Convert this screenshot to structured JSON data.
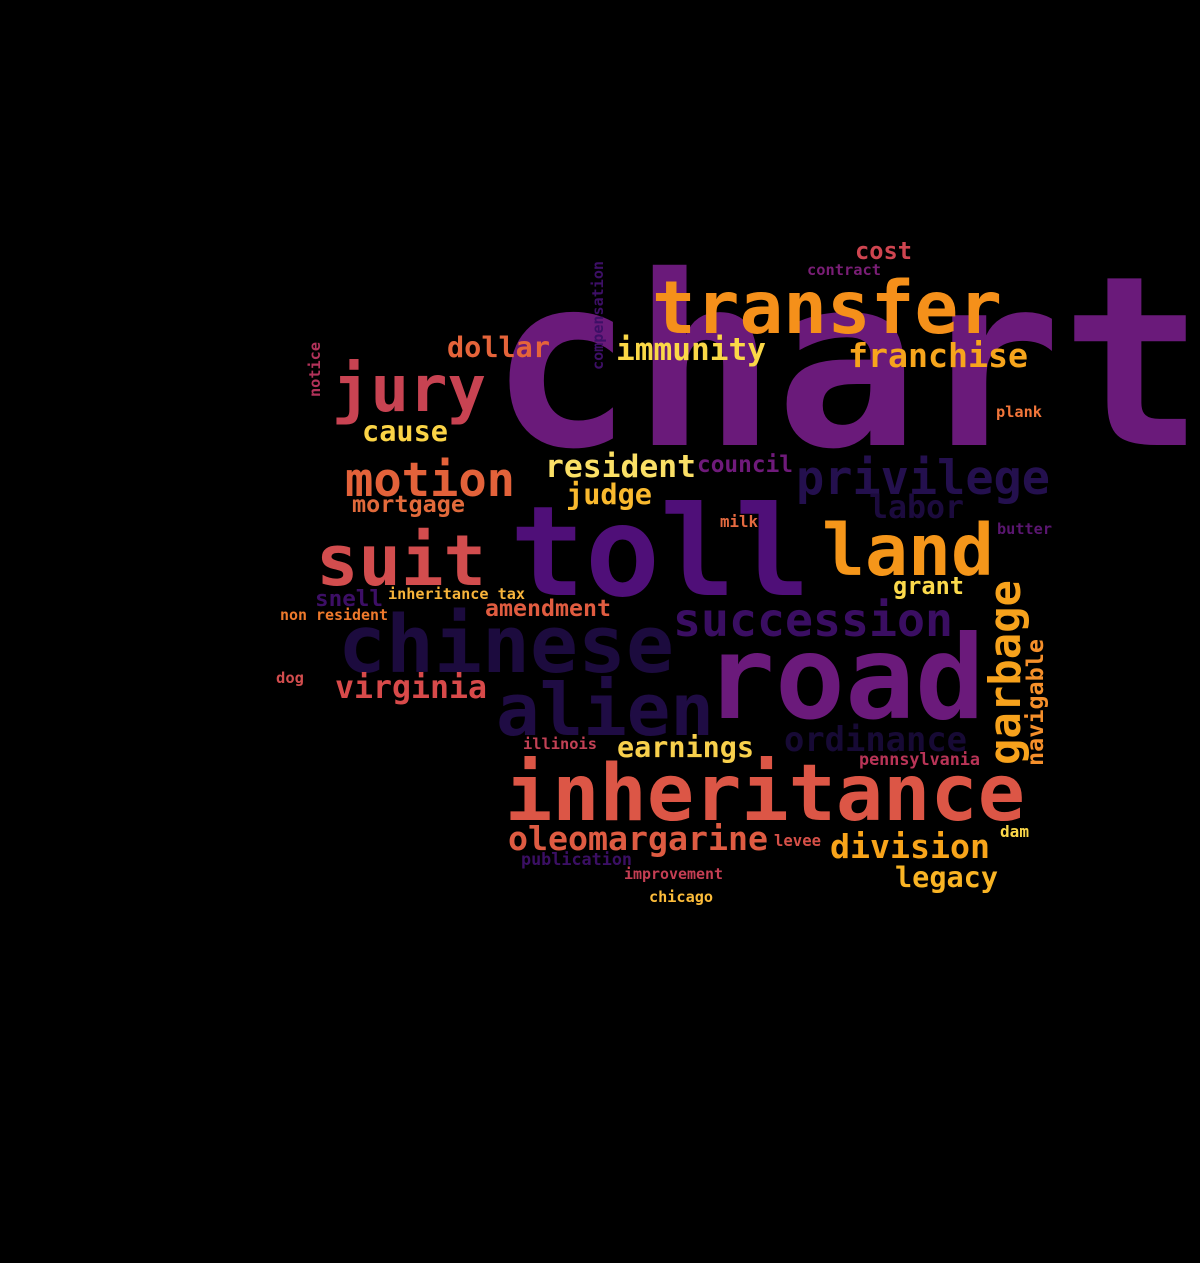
{
  "words": [
    {
      "text": "charter",
      "color": "#6a1a7a"
    },
    {
      "text": "toll",
      "color": "#4f0f78"
    },
    {
      "text": "road",
      "color": "#6b1a7b"
    },
    {
      "text": "inheritance",
      "color": "#dc5646"
    },
    {
      "text": "transfer",
      "color": "#f5901a"
    },
    {
      "text": "chinese",
      "color": "#1c0b3e"
    },
    {
      "text": "suit",
      "color": "#d24d4e"
    },
    {
      "text": "land",
      "color": "#f5961a"
    },
    {
      "text": "jury",
      "color": "#c84352"
    },
    {
      "text": "alien",
      "color": "#1f0c44"
    },
    {
      "text": "privilege",
      "color": "#24104e"
    },
    {
      "text": "motion",
      "color": "#e3623a"
    },
    {
      "text": "succession",
      "color": "#3a0e62"
    },
    {
      "text": "garbage",
      "color": "#f7a21c"
    },
    {
      "text": "oleomargarine",
      "color": "#de5b42"
    },
    {
      "text": "ordinance",
      "color": "#170a35"
    },
    {
      "text": "division",
      "color": "#f8a41a"
    },
    {
      "text": "franchise",
      "color": "#f7a51c"
    },
    {
      "text": "virginia",
      "color": "#d84a4a"
    },
    {
      "text": "immunity",
      "color": "#fbd847"
    },
    {
      "text": "dollar",
      "color": "#e5643a"
    },
    {
      "text": "resident",
      "color": "#fbe066"
    },
    {
      "text": "earnings",
      "color": "#f8d04c"
    },
    {
      "text": "legacy",
      "color": "#f9b424"
    },
    {
      "text": "cause",
      "color": "#fbd446"
    },
    {
      "text": "judge",
      "color": "#f9b92e"
    },
    {
      "text": "labor",
      "color": "#1c0b3e"
    },
    {
      "text": "amendment",
      "color": "#e05c40"
    },
    {
      "text": "mortgage",
      "color": "#e16a3b"
    },
    {
      "text": "navigable",
      "color": "#f58f2a"
    },
    {
      "text": "council",
      "color": "#6f1a7a"
    },
    {
      "text": "cost",
      "color": "#cf4550"
    },
    {
      "text": "grant",
      "color": "#fbd94c"
    },
    {
      "text": "snell",
      "color": "#3d0f66"
    },
    {
      "text": "inheritance tax",
      "color": "#f8b43a"
    },
    {
      "text": "non resident",
      "color": "#ef7a2c"
    },
    {
      "text": "compensation",
      "color": "#3d0f66"
    },
    {
      "text": "contract",
      "color": "#7a1e76"
    },
    {
      "text": "notice",
      "color": "#b2325a"
    },
    {
      "text": "plank",
      "color": "#f2763a"
    },
    {
      "text": "milk",
      "color": "#e56a40"
    },
    {
      "text": "butter",
      "color": "#5a1670"
    },
    {
      "text": "pennsylvania",
      "color": "#b83457"
    },
    {
      "text": "illinois",
      "color": "#c24155"
    },
    {
      "text": "dog",
      "color": "#d24d4e"
    },
    {
      "text": "levee",
      "color": "#d55048"
    },
    {
      "text": "dam",
      "color": "#fbd84a"
    },
    {
      "text": "publication",
      "color": "#3b0f64"
    },
    {
      "text": "improvement",
      "color": "#c43e53"
    },
    {
      "text": "chicago",
      "color": "#fcbc3a"
    }
  ]
}
